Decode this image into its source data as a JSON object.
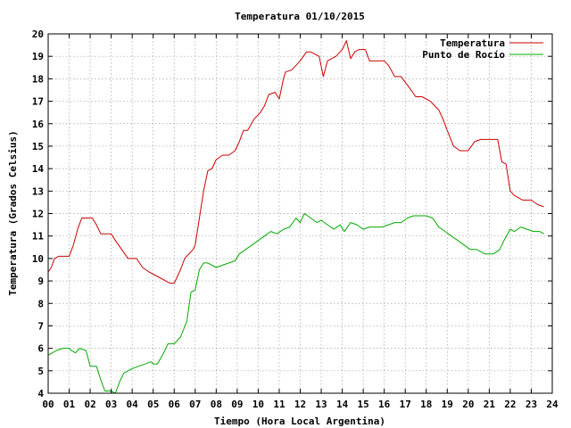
{
  "chart_data": {
    "type": "line",
    "title": "Temperatura 01/10/2015",
    "xlabel": "Tiempo (Hora Local Argentina)",
    "ylabel": "Temperatura (Grados Celsius)",
    "xlim": [
      0,
      24
    ],
    "ylim": [
      4,
      20
    ],
    "xticks": [
      "00",
      "01",
      "02",
      "03",
      "04",
      "05",
      "06",
      "07",
      "08",
      "09",
      "10",
      "11",
      "12",
      "13",
      "14",
      "15",
      "16",
      "17",
      "18",
      "19",
      "20",
      "21",
      "22",
      "23",
      "24"
    ],
    "yticks": [
      "4",
      "5",
      "6",
      "7",
      "8",
      "9",
      "10",
      "11",
      "12",
      "13",
      "14",
      "15",
      "16",
      "17",
      "18",
      "19",
      "20"
    ],
    "grid": true,
    "legend_position": "top-right",
    "series": [
      {
        "name": "Temperatura",
        "color": "#cc0000",
        "x": [
          0.0,
          0.15,
          0.3,
          0.5,
          1.0,
          1.2,
          1.4,
          1.6,
          2.1,
          2.3,
          2.5,
          3.0,
          3.2,
          3.5,
          3.8,
          4.2,
          4.5,
          4.8,
          5.2,
          5.8,
          6.0,
          6.3,
          6.5,
          6.9,
          7.0,
          7.2,
          7.4,
          7.6,
          7.8,
          8.0,
          8.3,
          8.6,
          8.9,
          9.1,
          9.3,
          9.5,
          9.8,
          10.1,
          10.3,
          10.5,
          10.8,
          11.0,
          11.2,
          11.3,
          11.6,
          11.8,
          12.0,
          12.3,
          12.5,
          12.9,
          13.1,
          13.3,
          13.7,
          14.0,
          14.2,
          14.4,
          14.6,
          14.8,
          15.1,
          15.3,
          15.6,
          16.0,
          16.2,
          16.5,
          16.8,
          17.2,
          17.5,
          17.8,
          18.2,
          18.6,
          18.8,
          19.0,
          19.3,
          19.6,
          20.0,
          20.3,
          20.6,
          21.0,
          21.4,
          21.6,
          21.8,
          22.0,
          22.2,
          22.6,
          23.0,
          23.3,
          23.6
        ],
        "y": [
          9.4,
          9.6,
          10.0,
          10.1,
          10.1,
          10.6,
          11.3,
          11.8,
          11.8,
          11.5,
          11.1,
          11.1,
          10.8,
          10.4,
          10.0,
          10.0,
          9.6,
          9.4,
          9.2,
          8.9,
          8.9,
          9.5,
          10.0,
          10.4,
          10.6,
          11.8,
          13.0,
          13.9,
          14.0,
          14.4,
          14.6,
          14.6,
          14.8,
          15.2,
          15.7,
          15.7,
          16.2,
          16.5,
          16.8,
          17.3,
          17.4,
          17.1,
          18.0,
          18.3,
          18.4,
          18.6,
          18.8,
          19.2,
          19.2,
          19.0,
          18.1,
          18.8,
          19.0,
          19.3,
          19.7,
          18.9,
          19.2,
          19.3,
          19.3,
          18.8,
          18.8,
          18.8,
          18.6,
          18.1,
          18.1,
          17.6,
          17.2,
          17.2,
          17.0,
          16.6,
          16.2,
          15.7,
          15.0,
          14.8,
          14.8,
          15.2,
          15.3,
          15.3,
          15.3,
          14.3,
          14.2,
          13.0,
          12.8,
          12.6,
          12.6,
          12.4,
          12.3
        ]
      },
      {
        "name": "Punto de Rocío",
        "color": "#00aa00",
        "x": [
          0.0,
          0.2,
          0.4,
          0.7,
          1.0,
          1.1,
          1.3,
          1.5,
          1.8,
          2.0,
          2.3,
          2.5,
          2.7,
          3.0,
          3.2,
          3.4,
          3.6,
          3.8,
          4.0,
          4.3,
          4.6,
          4.9,
          5.0,
          5.2,
          5.5,
          5.7,
          6.0,
          6.3,
          6.6,
          6.8,
          7.0,
          7.2,
          7.4,
          7.6,
          8.0,
          8.3,
          8.6,
          8.9,
          9.1,
          9.4,
          9.7,
          10.0,
          10.3,
          10.6,
          10.9,
          11.2,
          11.5,
          11.8,
          12.0,
          12.2,
          12.5,
          12.8,
          13.0,
          13.3,
          13.6,
          13.9,
          14.1,
          14.4,
          14.7,
          15.0,
          15.3,
          15.6,
          15.9,
          16.2,
          16.5,
          16.8,
          17.1,
          17.4,
          17.7,
          18.0,
          18.3,
          18.6,
          18.9,
          19.2,
          19.5,
          19.8,
          20.1,
          20.4,
          20.8,
          21.2,
          21.5,
          21.7,
          22.0,
          22.2,
          22.5,
          22.8,
          23.1,
          23.4,
          23.6
        ],
        "y": [
          5.7,
          5.8,
          5.9,
          6.0,
          6.0,
          5.9,
          5.8,
          6.0,
          5.9,
          5.2,
          5.2,
          4.6,
          4.1,
          4.1,
          4.0,
          4.5,
          4.9,
          5.0,
          5.1,
          5.2,
          5.3,
          5.4,
          5.3,
          5.3,
          5.8,
          6.2,
          6.2,
          6.5,
          7.2,
          8.5,
          8.6,
          9.5,
          9.8,
          9.8,
          9.6,
          9.7,
          9.8,
          9.9,
          10.2,
          10.4,
          10.6,
          10.8,
          11.0,
          11.2,
          11.1,
          11.3,
          11.4,
          11.8,
          11.6,
          12.0,
          11.8,
          11.6,
          11.7,
          11.5,
          11.3,
          11.5,
          11.2,
          11.6,
          11.5,
          11.3,
          11.4,
          11.4,
          11.4,
          11.5,
          11.6,
          11.6,
          11.8,
          11.9,
          11.9,
          11.9,
          11.8,
          11.4,
          11.2,
          11.0,
          10.8,
          10.6,
          10.4,
          10.4,
          10.2,
          10.2,
          10.4,
          10.8,
          11.3,
          11.2,
          11.4,
          11.3,
          11.2,
          11.2,
          11.1
        ]
      }
    ]
  }
}
